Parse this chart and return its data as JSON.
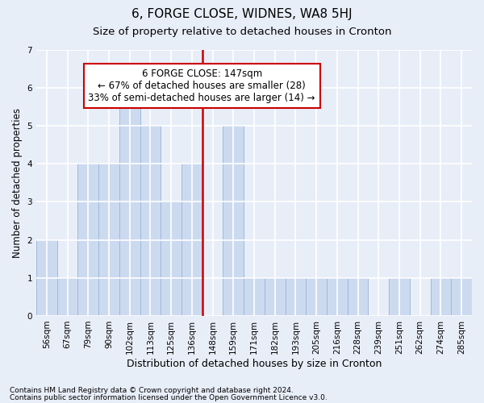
{
  "title": "6, FORGE CLOSE, WIDNES, WA8 5HJ",
  "subtitle": "Size of property relative to detached houses in Cronton",
  "xlabel": "Distribution of detached houses by size in Cronton",
  "ylabel": "Number of detached properties",
  "footer1": "Contains HM Land Registry data © Crown copyright and database right 2024.",
  "footer2": "Contains public sector information licensed under the Open Government Licence v3.0.",
  "bins": [
    "56sqm",
    "67sqm",
    "79sqm",
    "90sqm",
    "102sqm",
    "113sqm",
    "125sqm",
    "136sqm",
    "148sqm",
    "159sqm",
    "171sqm",
    "182sqm",
    "193sqm",
    "205sqm",
    "216sqm",
    "228sqm",
    "239sqm",
    "251sqm",
    "262sqm",
    "274sqm",
    "285sqm"
  ],
  "values": [
    2,
    1,
    4,
    4,
    6,
    5,
    3,
    4,
    0,
    5,
    1,
    1,
    1,
    1,
    1,
    1,
    0,
    1,
    0,
    1,
    1
  ],
  "bar_color": "#ccdaf0",
  "bar_edge_color": "#a0b8d8",
  "reference_line_index": 8,
  "reference_line_color": "#cc0000",
  "annotation_line1": "6 FORGE CLOSE: 147sqm",
  "annotation_line2": "← 67% of detached houses are smaller (28)",
  "annotation_line3": "33% of semi-detached houses are larger (14) →",
  "annotation_box_color": "#cc0000",
  "ylim": [
    0,
    7
  ],
  "yticks": [
    0,
    1,
    2,
    3,
    4,
    5,
    6,
    7
  ],
  "background_color": "#e8eef8",
  "grid_color": "#ffffff",
  "title_fontsize": 11,
  "subtitle_fontsize": 9.5,
  "ylabel_fontsize": 8.5,
  "xlabel_fontsize": 9,
  "tick_fontsize": 7.5,
  "footer_fontsize": 6.5,
  "annotation_fontsize": 8.5
}
